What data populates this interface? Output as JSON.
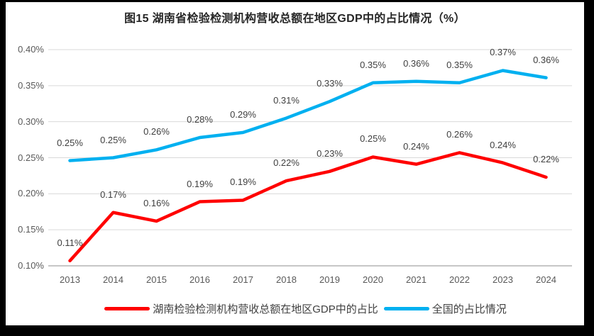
{
  "chart_data": {
    "type": "line",
    "title": "图15 湖南省检验检测机构营收总额在地区GDP中的占比情况（%）",
    "categories": [
      "2013",
      "2014",
      "2015",
      "2016",
      "2017",
      "2018",
      "2019",
      "2020",
      "2021",
      "2022",
      "2023",
      "2024"
    ],
    "series": [
      {
        "name": "湖南检验检测机构营收总额在地区GDP中的占比",
        "color": "#FF0000",
        "point_labels": [
          "0.11%",
          "0.17%",
          "0.16%",
          "0.19%",
          "0.19%",
          "0.22%",
          "0.23%",
          "0.25%",
          "0.24%",
          "0.26%",
          "0.24%",
          "0.22%"
        ],
        "values": [
          0.107,
          0.174,
          0.162,
          0.189,
          0.191,
          0.218,
          0.231,
          0.251,
          0.241,
          0.257,
          0.243,
          0.223
        ]
      },
      {
        "name": "全国的占比情况",
        "color": "#00B0F0",
        "point_labels": [
          "0.25%",
          "0.25%",
          "0.26%",
          "0.28%",
          "0.29%",
          "0.31%",
          "0.33%",
          "0.35%",
          "0.36%",
          "0.35%",
          "0.37%",
          "0.36%"
        ],
        "values": [
          0.246,
          0.25,
          0.261,
          0.278,
          0.285,
          0.305,
          0.328,
          0.354,
          0.356,
          0.354,
          0.371,
          0.361
        ]
      }
    ],
    "y_ticks": [
      "0.40%",
      "0.35%",
      "0.30%",
      "0.25%",
      "0.20%",
      "0.15%",
      "0.10%"
    ],
    "ylim": [
      0.1,
      0.4
    ],
    "grid": true,
    "legend_position": "bottom",
    "colors": {
      "gridline": "#D9D9D9",
      "axis_line": "#C6C6C6",
      "tick_text": "#595959",
      "data_label_text": "#3F3F3F",
      "frame_border": "#000000"
    }
  }
}
